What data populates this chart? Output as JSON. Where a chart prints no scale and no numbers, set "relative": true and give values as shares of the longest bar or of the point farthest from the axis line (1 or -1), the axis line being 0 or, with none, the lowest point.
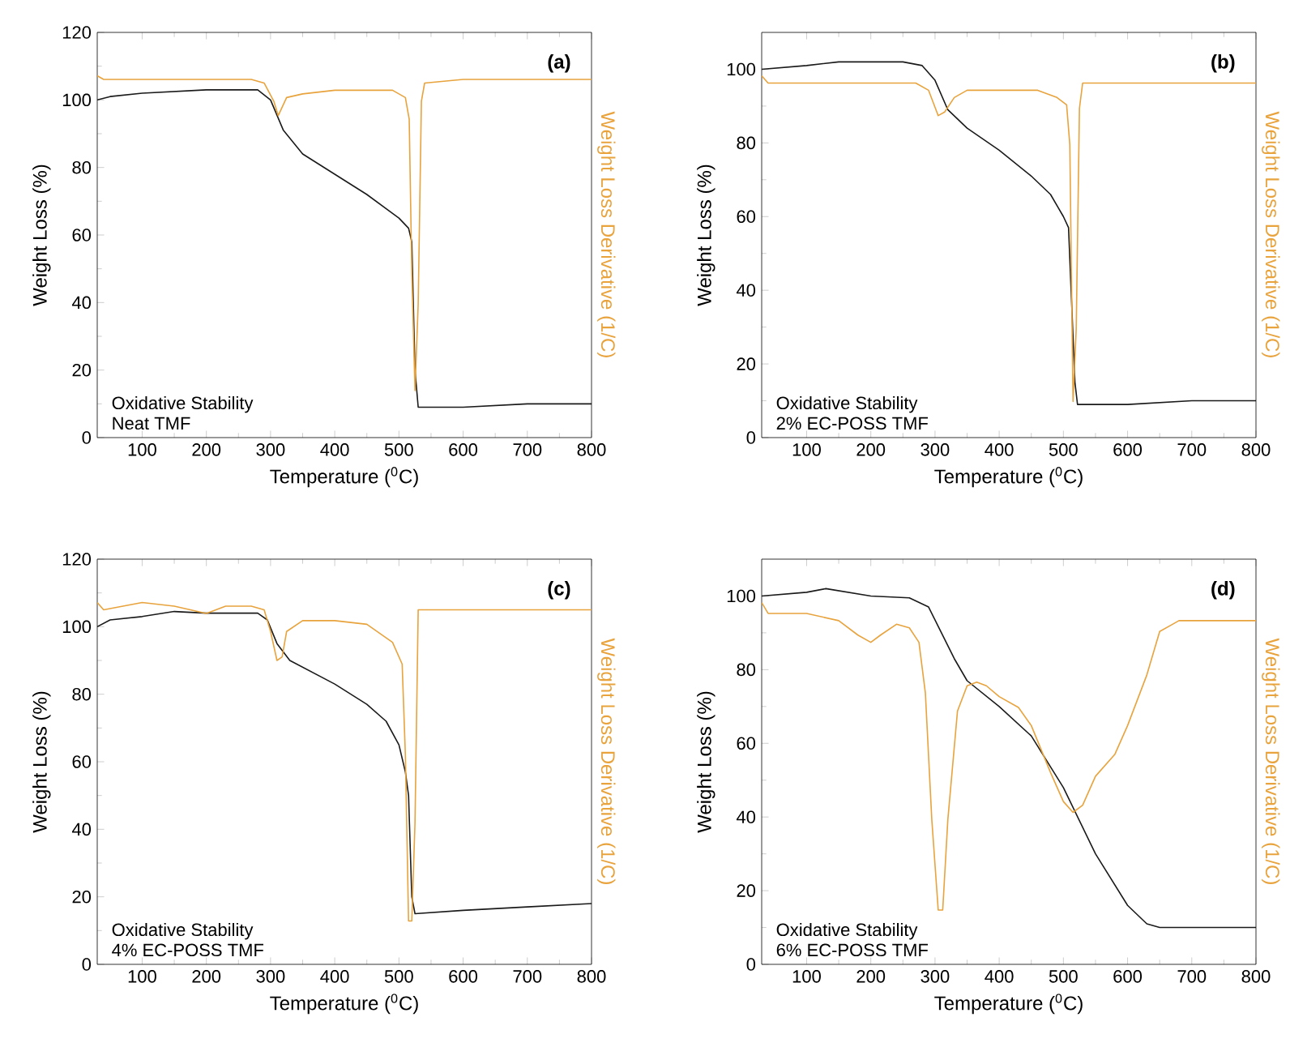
{
  "chart_data": [
    {
      "type": "line",
      "xlabel": "Temperature ($^{0}$C)",
      "ylabel": "Weight Loss (%)",
      "annotations": [
        "(a)",
        "Oxidative Stability",
        "Neat TMF"
      ],
      "xlim": [
        30,
        800
      ],
      "xticks": [
        100,
        200,
        300,
        400,
        500,
        600,
        700,
        800
      ],
      "ylim": [
        0,
        120
      ],
      "yticks": [
        0,
        20,
        40,
        60,
        80,
        100,
        120
      ],
      "series": [
        {
          "color": "#1a1a1a",
          "x": [
            30,
            50,
            100,
            200,
            280,
            300,
            320,
            350,
            400,
            450,
            500,
            515,
            520,
            525,
            530,
            550,
            600,
            700,
            800
          ],
          "values": [
            100,
            101,
            102,
            103,
            103,
            100,
            91,
            84,
            78,
            72,
            65,
            62,
            58,
            20,
            9,
            9,
            9,
            10,
            10
          ]
        }
      ]
    },
    {
      "type": "line",
      "ylabel": "Weight Loss Derivative (1/C)",
      "relative": true,
      "tick_labels": false,
      "xlim": [
        30,
        800
      ],
      "series": [
        {
          "color": "#e8a33d",
          "x": [
            30,
            40,
            100,
            200,
            270,
            290,
            305,
            312,
            325,
            350,
            400,
            450,
            490,
            510,
            516,
            520,
            525,
            530,
            535,
            540,
            600,
            700,
            800
          ],
          "values": [
            1,
            0.99,
            0.99,
            0.99,
            0.99,
            0.98,
            0.93,
            0.89,
            0.94,
            0.95,
            0.96,
            0.96,
            0.96,
            0.94,
            0.88,
            0.46,
            0.13,
            0.37,
            0.93,
            0.98,
            0.99,
            0.99,
            0.99
          ]
        }
      ]
    },
    {
      "type": "line",
      "xlabel": "Temperature ($^{0}$C)",
      "ylabel": "Weight Loss (%)",
      "annotations": [
        "(b)",
        "Oxidative Stability",
        "2% EC-POSS TMF"
      ],
      "xlim": [
        30,
        800
      ],
      "xticks": [
        100,
        200,
        300,
        400,
        500,
        600,
        700,
        800
      ],
      "ylim": [
        0,
        110
      ],
      "yticks": [
        0,
        20,
        40,
        60,
        80,
        100
      ],
      "series": [
        {
          "color": "#1a1a1a",
          "x": [
            30,
            100,
            150,
            250,
            280,
            300,
            320,
            350,
            400,
            450,
            480,
            500,
            508,
            512,
            518,
            522,
            600,
            700,
            800
          ],
          "values": [
            100,
            101,
            102,
            102,
            101,
            97,
            89,
            84,
            78,
            71,
            66,
            60,
            57,
            40,
            15,
            9,
            9,
            10,
            10
          ]
        }
      ]
    },
    {
      "type": "line",
      "ylabel": "Weight Loss Derivative (1/C)",
      "relative": true,
      "tick_labels": false,
      "xlim": [
        30,
        800
      ],
      "series": [
        {
          "color": "#e8a33d",
          "x": [
            30,
            40,
            100,
            200,
            270,
            290,
            305,
            315,
            330,
            350,
            400,
            460,
            490,
            505,
            510,
            515,
            520,
            525,
            530,
            600,
            800
          ],
          "values": [
            1,
            0.98,
            0.98,
            0.98,
            0.98,
            0.96,
            0.89,
            0.9,
            0.94,
            0.96,
            0.96,
            0.96,
            0.94,
            0.92,
            0.81,
            0.1,
            0.3,
            0.91,
            0.98,
            0.98,
            0.98
          ]
        }
      ]
    },
    {
      "type": "line",
      "xlabel": "Temperature ($^{0}$C)",
      "ylabel": "Weight Loss (%)",
      "annotations": [
        "(c)",
        "Oxidative Stability",
        "4% EC-POSS TMF"
      ],
      "xlim": [
        30,
        800
      ],
      "xticks": [
        100,
        200,
        300,
        400,
        500,
        600,
        700,
        800
      ],
      "ylim": [
        0,
        120
      ],
      "yticks": [
        0,
        20,
        40,
        60,
        80,
        100,
        120
      ],
      "series": [
        {
          "color": "#1a1a1a",
          "x": [
            30,
            50,
            100,
            150,
            200,
            280,
            295,
            310,
            330,
            400,
            450,
            480,
            500,
            510,
            515,
            520,
            525,
            600,
            700,
            800
          ],
          "values": [
            100,
            102,
            103,
            104.5,
            104,
            104,
            102,
            95,
            90,
            83,
            77,
            72,
            65,
            57,
            50,
            20,
            15,
            16,
            17,
            18
          ]
        }
      ]
    },
    {
      "type": "line",
      "ylabel": "Weight Loss Derivative (1/C)",
      "relative": true,
      "tick_labels": false,
      "xlim": [
        30,
        800
      ],
      "series": [
        {
          "color": "#e8a33d",
          "x": [
            30,
            40,
            100,
            150,
            200,
            230,
            270,
            290,
            300,
            310,
            318,
            325,
            350,
            400,
            450,
            490,
            505,
            510,
            515,
            520,
            525,
            530,
            600,
            800
          ],
          "values": [
            1,
            0.98,
            1,
            0.99,
            0.97,
            0.99,
            0.99,
            0.98,
            0.92,
            0.84,
            0.85,
            0.92,
            0.95,
            0.95,
            0.94,
            0.89,
            0.83,
            0.58,
            0.12,
            0.12,
            0.39,
            0.98,
            0.98,
            0.98
          ]
        }
      ]
    },
    {
      "type": "line",
      "xlabel": "Temperature ($^{0}$C)",
      "ylabel": "Weight Loss (%)",
      "annotations": [
        "(d)",
        "Oxidative Stability",
        "6% EC-POSS TMF"
      ],
      "xlim": [
        30,
        800
      ],
      "xticks": [
        100,
        200,
        300,
        400,
        500,
        600,
        700,
        800
      ],
      "ylim": [
        0,
        110
      ],
      "yticks": [
        0,
        20,
        40,
        60,
        80,
        100
      ],
      "series": [
        {
          "color": "#1a1a1a",
          "x": [
            30,
            100,
            130,
            200,
            260,
            290,
            310,
            330,
            350,
            400,
            450,
            500,
            550,
            600,
            630,
            650,
            700,
            800
          ],
          "values": [
            100,
            101,
            102,
            100,
            99.5,
            97,
            90,
            83,
            77,
            70,
            62,
            48,
            30,
            16,
            11,
            10,
            10,
            10
          ]
        }
      ]
    },
    {
      "type": "line",
      "ylabel": "Weight Loss Derivative (1/C)",
      "relative": true,
      "tick_labels": false,
      "xlim": [
        30,
        800
      ],
      "series": [
        {
          "color": "#e8a33d",
          "x": [
            30,
            40,
            60,
            100,
            150,
            180,
            200,
            215,
            240,
            260,
            275,
            285,
            295,
            305,
            312,
            320,
            335,
            350,
            365,
            380,
            400,
            430,
            450,
            480,
            500,
            515,
            530,
            550,
            580,
            600,
            630,
            650,
            670,
            680,
            700,
            800
          ],
          "values": [
            1,
            0.97,
            0.97,
            0.97,
            0.95,
            0.91,
            0.89,
            0.91,
            0.94,
            0.93,
            0.89,
            0.75,
            0.4,
            0.15,
            0.15,
            0.4,
            0.7,
            0.77,
            0.78,
            0.77,
            0.74,
            0.71,
            0.66,
            0.53,
            0.45,
            0.42,
            0.44,
            0.52,
            0.58,
            0.66,
            0.8,
            0.92,
            0.94,
            0.95,
            0.95,
            0.95
          ]
        }
      ]
    }
  ]
}
